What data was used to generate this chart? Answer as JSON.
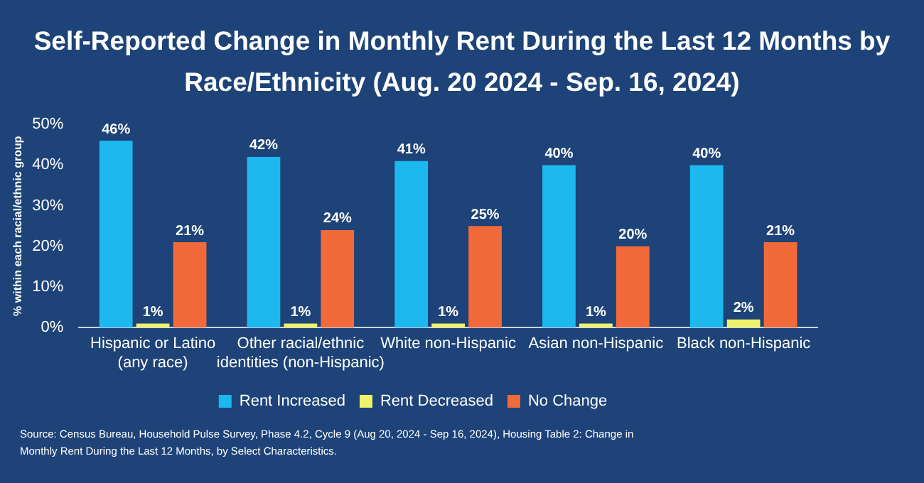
{
  "chart_data": {
    "type": "bar",
    "title": "Self-Reported Change in Monthly Rent During the Last 12 Months by Race/Ethnicity (Aug. 20 2024 - Sep. 16, 2024)",
    "ylabel": "% within each racial/ethnic group",
    "categories": [
      "Hispanic or Latino (any race)",
      "Other racial/ethnic identities (non-Hispanic)",
      "White non-Hispanic",
      "Asian non-Hispanic",
      "Black non-Hispanic"
    ],
    "series": [
      {
        "name": "Rent Increased",
        "color": "#1cb8ee",
        "values": [
          46,
          42,
          41,
          40,
          40
        ],
        "value_labels": [
          "46%",
          "42%",
          "41%",
          "40%",
          "40%"
        ]
      },
      {
        "name": "Rent Decreased",
        "color": "#eef26a",
        "values": [
          1,
          1,
          1,
          1,
          2
        ],
        "value_labels": [
          "1%",
          "1%",
          "1%",
          "1%",
          "2%"
        ]
      },
      {
        "name": "No Change",
        "color": "#f26a3a",
        "values": [
          21,
          24,
          25,
          20,
          21
        ],
        "value_labels": [
          "21%",
          "24%",
          "25%",
          "20%",
          "21%"
        ]
      }
    ],
    "ylim": [
      0,
      50
    ],
    "yticks": [
      {
        "value": 0,
        "label": "0%"
      },
      {
        "value": 10,
        "label": "10%"
      },
      {
        "value": 20,
        "label": "20%"
      },
      {
        "value": 30,
        "label": "30%"
      },
      {
        "value": 40,
        "label": "40%"
      },
      {
        "value": 50,
        "label": "50%"
      }
    ],
    "legend": "bottom",
    "grid": false,
    "annotations": [
      "Source: Census Bureau, Household Pulse Survey, Phase 4.2, Cycle 9 (Aug 20, 2024 - Sep 16, 2024), Housing Table 2: Change in Monthly Rent During the Last 12 Months, by Select Characteristics."
    ]
  }
}
